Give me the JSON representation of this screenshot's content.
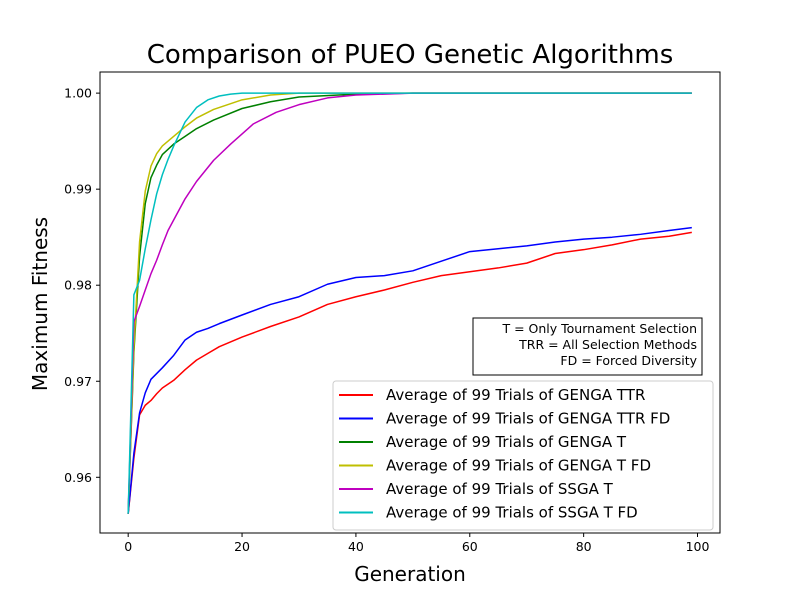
{
  "chart_data": {
    "type": "line",
    "title": "Comparison of PUEO Genetic Algorithms",
    "xlabel": "Generation",
    "ylabel": "Maximum Fitness",
    "xlim": [
      -4.95,
      103.95
    ],
    "ylim": [
      0.9542,
      1.0022
    ],
    "xticks": [
      0,
      20,
      40,
      60,
      80,
      100
    ],
    "xtick_labels": [
      "0",
      "20",
      "40",
      "60",
      "80",
      "100"
    ],
    "yticks": [
      0.96,
      0.97,
      0.98,
      0.99,
      1.0
    ],
    "ytick_labels": [
      "0.96",
      "0.97",
      "0.98",
      "0.99",
      "1.00"
    ],
    "grid": false,
    "legend_position": "lower-right",
    "annotation_lines": [
      "T = Only Tournament Selection",
      "TRR = All Selection Methods",
      "FD = Forced Diversity"
    ],
    "series": [
      {
        "name": "Average of 99 Trials of GENGA TTR",
        "color": "#ff0000",
        "x": [
          0,
          1,
          2,
          3,
          4,
          5,
          6,
          8,
          10,
          12,
          14,
          16,
          20,
          25,
          30,
          35,
          40,
          45,
          50,
          55,
          60,
          65,
          70,
          75,
          80,
          85,
          90,
          95,
          99
        ],
        "y": [
          0.9562,
          0.962,
          0.9665,
          0.9675,
          0.968,
          0.9687,
          0.9693,
          0.9701,
          0.9712,
          0.9722,
          0.9729,
          0.9736,
          0.9746,
          0.9757,
          0.9767,
          0.978,
          0.9788,
          0.9795,
          0.9803,
          0.981,
          0.9814,
          0.9818,
          0.9823,
          0.9833,
          0.9837,
          0.9842,
          0.9848,
          0.9851,
          0.9855
        ]
      },
      {
        "name": "Average of 99 Trials of GENGA TTR FD",
        "color": "#0000ff",
        "x": [
          0,
          1,
          2,
          3,
          4,
          5,
          6,
          8,
          10,
          12,
          14,
          16,
          20,
          25,
          30,
          35,
          40,
          45,
          50,
          55,
          60,
          65,
          70,
          75,
          80,
          85,
          90,
          95,
          99
        ],
        "y": [
          0.9562,
          0.9625,
          0.9667,
          0.9688,
          0.9702,
          0.9708,
          0.9714,
          0.9727,
          0.9743,
          0.9751,
          0.9755,
          0.976,
          0.9769,
          0.978,
          0.9788,
          0.9801,
          0.9808,
          0.981,
          0.9815,
          0.9825,
          0.9835,
          0.9838,
          0.9841,
          0.9845,
          0.9848,
          0.985,
          0.9853,
          0.9857,
          0.986
        ]
      },
      {
        "name": "Average of 99 Trials of GENGA T",
        "color": "#008000",
        "x": [
          0,
          1,
          2,
          3,
          4,
          5,
          6,
          8,
          10,
          12,
          15,
          20,
          25,
          30,
          40,
          50,
          60,
          70,
          80,
          90,
          99
        ],
        "y": [
          0.9562,
          0.973,
          0.983,
          0.9885,
          0.9912,
          0.9925,
          0.9936,
          0.9947,
          0.9955,
          0.9963,
          0.9972,
          0.9984,
          0.9991,
          0.9996,
          0.9999,
          1.0,
          1.0,
          1.0,
          1.0,
          1.0,
          1.0
        ]
      },
      {
        "name": "Average of 99 Trials of GENGA T FD",
        "color": "#bfbf00",
        "x": [
          0,
          1,
          2,
          3,
          4,
          5,
          6,
          8,
          10,
          12,
          15,
          20,
          25,
          30,
          40,
          50,
          60,
          70,
          80,
          90,
          99
        ],
        "y": [
          0.9562,
          0.9735,
          0.9845,
          0.9898,
          0.9924,
          0.9937,
          0.9945,
          0.9955,
          0.9965,
          0.9974,
          0.9983,
          0.9993,
          0.9998,
          1.0,
          1.0,
          1.0,
          1.0,
          1.0,
          1.0,
          1.0,
          1.0
        ]
      },
      {
        "name": "Average of 99 Trials of SSGA T",
        "color": "#bf00bf",
        "x": [
          0,
          1,
          2,
          3,
          4,
          5,
          6,
          7,
          8,
          10,
          12,
          15,
          18,
          22,
          26,
          30,
          35,
          40,
          45,
          50,
          60,
          70,
          80,
          90,
          99
        ],
        "y": [
          0.9562,
          0.9762,
          0.9778,
          0.9795,
          0.9812,
          0.9826,
          0.9842,
          0.9857,
          0.9868,
          0.989,
          0.9908,
          0.993,
          0.9947,
          0.9968,
          0.998,
          0.9988,
          0.9995,
          0.9998,
          0.9999,
          1.0,
          1.0,
          1.0,
          1.0,
          1.0,
          1.0
        ]
      },
      {
        "name": "Average of 99 Trials of SSGA T FD",
        "color": "#00bfbf",
        "x": [
          0,
          1,
          2,
          3,
          4,
          5,
          6,
          7,
          8,
          10,
          12,
          14,
          16,
          18,
          20,
          25,
          30,
          40,
          50,
          60,
          70,
          80,
          90,
          99
        ],
        "y": [
          0.9562,
          0.979,
          0.9805,
          0.9838,
          0.9868,
          0.9895,
          0.9915,
          0.9931,
          0.9945,
          0.997,
          0.9985,
          0.9993,
          0.9997,
          0.9999,
          1.0,
          1.0,
          1.0,
          1.0,
          1.0,
          1.0,
          1.0,
          1.0,
          1.0,
          1.0
        ]
      }
    ]
  }
}
